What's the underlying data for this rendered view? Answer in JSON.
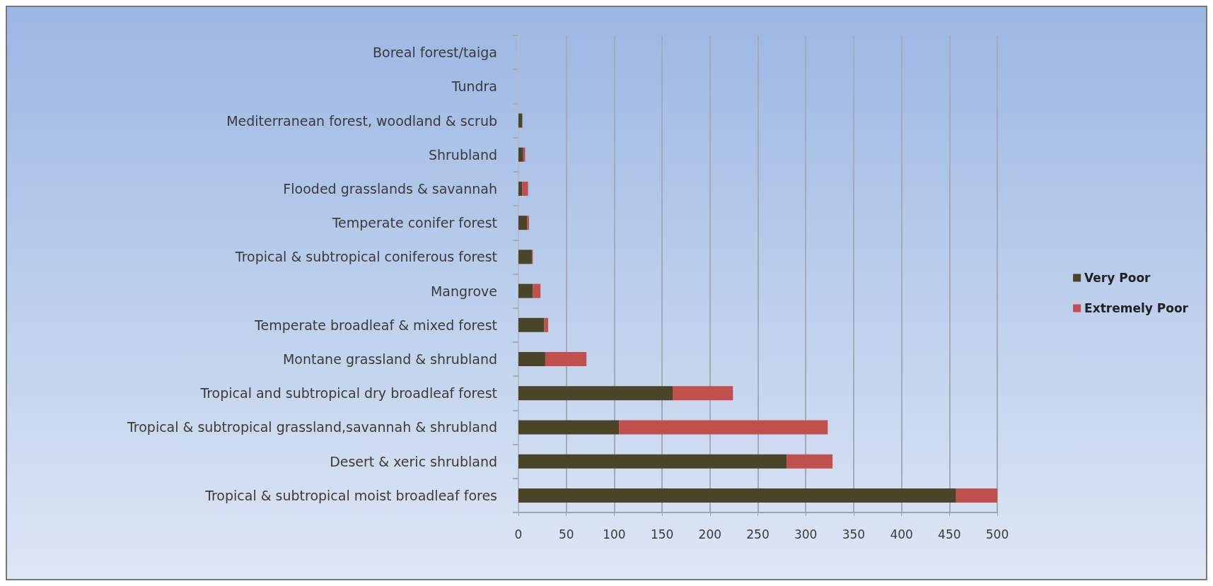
{
  "chart_data": {
    "type": "bar",
    "orientation": "horizontal",
    "stacked": true,
    "categories": [
      "Boreal forest/taiga",
      "Tundra",
      "Mediterranean forest, woodland & scrub",
      "Shrubland",
      "Flooded grasslands & savannah",
      "Temperate conifer forest",
      "Tropical & subtropical coniferous forest",
      "Mangrove",
      "Temperate broadleaf & mixed forest",
      "Montane grassland & shrubland",
      "Tropical and subtropical dry broadleaf forest",
      "Tropical & subtropical grassland,savannah & shrubland",
      "Desert & xeric shrubland",
      "Tropical & subtropical moist broadleaf fores"
    ],
    "series": [
      {
        "name": "Very Poor",
        "color": "#4a4428",
        "values": [
          0,
          0,
          4,
          5,
          4,
          9,
          14,
          15,
          27,
          28,
          161,
          105,
          280,
          457
        ]
      },
      {
        "name": "Extremely Poor",
        "color": "#c0504d",
        "values": [
          0,
          0,
          0,
          2,
          6,
          2,
          1,
          8,
          4,
          43,
          63,
          218,
          48,
          43
        ]
      }
    ],
    "xlim": [
      0,
      500
    ],
    "xticks": [
      0,
      50,
      100,
      150,
      200,
      250,
      300,
      350,
      400,
      450,
      500
    ],
    "grid": "x",
    "legend": "right"
  }
}
